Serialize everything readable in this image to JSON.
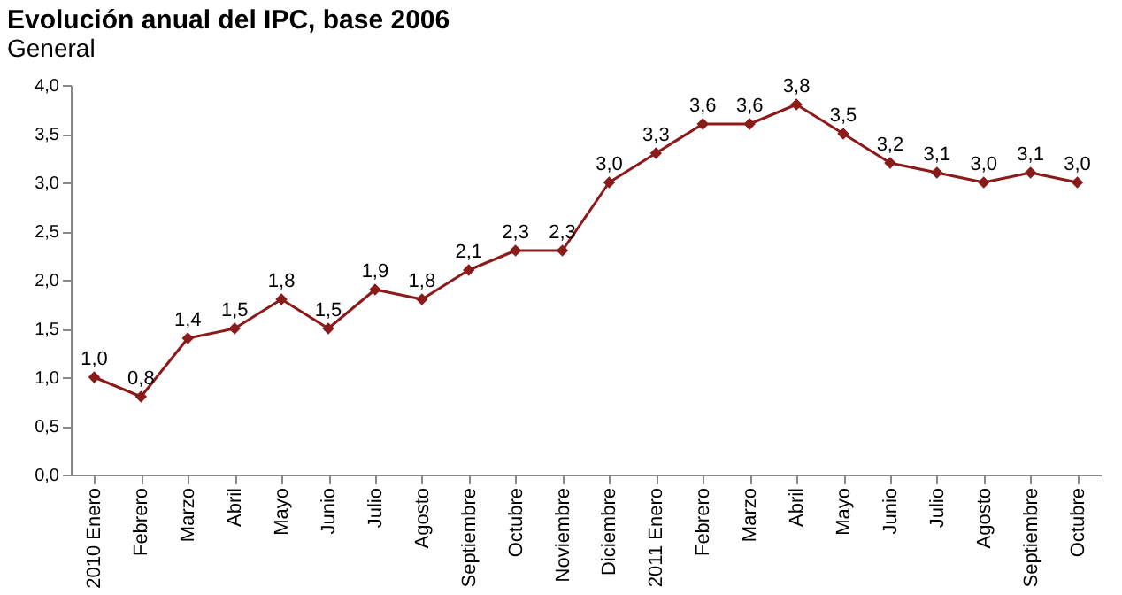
{
  "chart_data": {
    "type": "line",
    "title": "Evolución anual del IPC, base 2006",
    "subtitle": "General",
    "categories": [
      "2010 Enero",
      "Febrero",
      "Marzo",
      "Abril",
      "Mayo",
      "Junio",
      "Julio",
      "Agosto",
      "Septiembre",
      "Octubre",
      "Noviembre",
      "Diciembre",
      "2011 Enero",
      "Febrero",
      "Marzo",
      "Abril",
      "Mayo",
      "Junio",
      "Julio",
      "Agosto",
      "Septiembre",
      "Octubre"
    ],
    "series": [
      {
        "color": "#8b1a1a",
        "values": [
          1.0,
          0.8,
          1.4,
          1.5,
          1.8,
          1.5,
          1.9,
          1.8,
          2.1,
          2.3,
          2.3,
          3.0,
          3.3,
          3.6,
          3.6,
          3.8,
          3.5,
          3.2,
          3.1,
          3.0,
          3.1,
          3.0
        ],
        "value_labels": [
          "1,0",
          "0,8",
          "1,4",
          "1,5",
          "1,8",
          "1,5",
          "1,9",
          "1,8",
          "2,1",
          "2,3",
          "2,3",
          "3,0",
          "3,3",
          "3,6",
          "3,6",
          "3,8",
          "3,5",
          "3,2",
          "3,1",
          "3,0",
          "3,1",
          "3,0"
        ]
      }
    ],
    "ylim": [
      0,
      4
    ],
    "yticks": [
      {
        "value": 0,
        "label": "0,0"
      },
      {
        "value": 0.5,
        "label": "0,5"
      },
      {
        "value": 1,
        "label": "1,0"
      },
      {
        "value": 1.5,
        "label": "1,5"
      },
      {
        "value": 2,
        "label": "2,0"
      },
      {
        "value": 2.5,
        "label": "2,5"
      },
      {
        "value": 3,
        "label": "3,0"
      },
      {
        "value": 3.5,
        "label": "3,5"
      },
      {
        "value": 4,
        "label": "4,0"
      }
    ],
    "grid": false,
    "marker": "diamond",
    "line_style": "solid"
  }
}
